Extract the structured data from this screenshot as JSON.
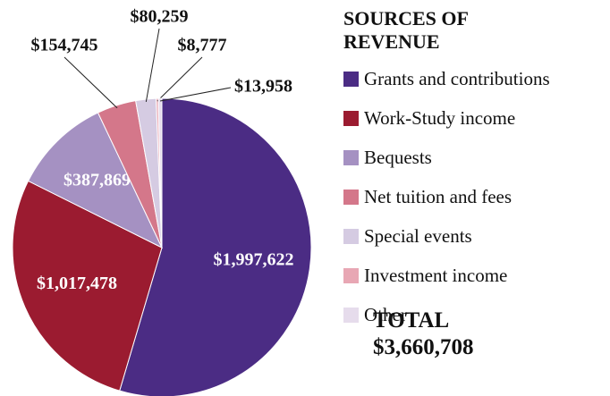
{
  "chart_data": {
    "type": "pie",
    "title": "SOURCES OF REVENUE",
    "categories": [
      "Grants and contributions",
      "Work-Study income",
      "Bequests",
      "Net tuition and fees",
      "Special events",
      "Investment income",
      "Other"
    ],
    "values": [
      1997622,
      1017478,
      387869,
      154745,
      80259,
      8777,
      13958
    ],
    "value_labels": [
      "$1,997,622",
      "$1,017,478",
      "$387,869",
      "$154,745",
      "$80,259",
      "$8,777",
      "$13,958"
    ],
    "colors": [
      "#4b2c84",
      "#9b1b30",
      "#a591c2",
      "#d4778a",
      "#d5cbe2",
      "#e8a7b4",
      "#e6dcec"
    ],
    "total": {
      "name": "TOTAL",
      "value": 3660708,
      "label": "$3,660,708"
    }
  }
}
